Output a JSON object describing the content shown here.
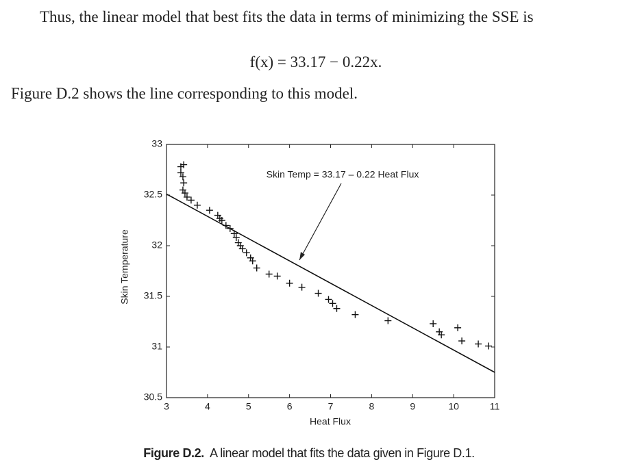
{
  "text": {
    "paragraph_1": "Thus, the linear model that best fits the data in terms of minimizing the SSE is",
    "equation": "f(x) = 33.17 − 0.22x.",
    "paragraph_2": "Figure D.2 shows the line corresponding to this model."
  },
  "caption": {
    "label": "Figure D.2.",
    "text": "A linear model that fits the data given in Figure D.1."
  },
  "chart_data": {
    "type": "scatter",
    "annotation": "Skin Temp = 33.17 – 0.22 Heat Flux",
    "x_label": "Heat Flux",
    "y_label": "Skin Temperature",
    "x": [
      3.35,
      3.42,
      3.35,
      3.4,
      3.42,
      3.4,
      3.45,
      3.5,
      3.6,
      3.75,
      4.05,
      4.25,
      4.3,
      4.35,
      4.45,
      4.55,
      4.65,
      4.7,
      4.75,
      4.8,
      4.85,
      4.95,
      5.05,
      5.1,
      5.2,
      5.5,
      5.7,
      6.0,
      6.3,
      6.7,
      6.95,
      7.05,
      7.15,
      7.6,
      8.4,
      9.5,
      9.65,
      9.7,
      10.1,
      10.2,
      10.6,
      10.85
    ],
    "values": [
      32.78,
      32.8,
      32.72,
      32.68,
      32.62,
      32.55,
      32.52,
      32.48,
      32.45,
      32.4,
      32.35,
      32.3,
      32.27,
      32.25,
      32.2,
      32.17,
      32.12,
      32.08,
      32.03,
      32.0,
      31.97,
      31.93,
      31.88,
      31.85,
      31.78,
      31.72,
      31.7,
      31.63,
      31.59,
      31.53,
      31.47,
      31.43,
      31.38,
      31.32,
      31.26,
      31.23,
      31.15,
      31.12,
      31.19,
      31.06,
      31.03,
      31.01
    ],
    "color": "#111111",
    "fit": {
      "intercept": 33.17,
      "slope": -0.22
    },
    "xlim": [
      3,
      11
    ],
    "xticks": [
      3,
      4,
      5,
      6,
      7,
      8,
      9,
      10,
      11
    ],
    "ylim": [
      30.5,
      33
    ],
    "yticks": [
      30.5,
      31,
      31.5,
      32,
      32.5,
      33
    ]
  }
}
